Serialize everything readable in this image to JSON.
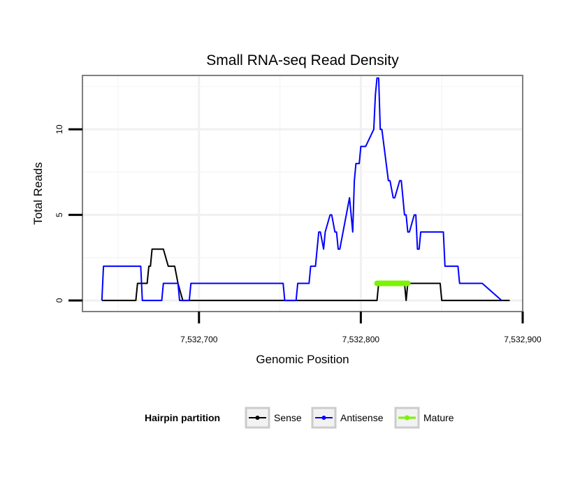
{
  "chart_data": {
    "type": "line",
    "title": "Small RNA-seq Read Density",
    "xlabel": "Genomic Position",
    "ylabel": "Total Reads",
    "xlim": [
      7532628,
      7532900
    ],
    "ylim": [
      -0.65,
      13.15
    ],
    "x_ticks": [
      {
        "value": 7532700,
        "label": "7,532,700"
      },
      {
        "value": 7532800,
        "label": "7,532,800"
      },
      {
        "value": 7532900,
        "label": "7,532,900"
      }
    ],
    "y_ticks": [
      {
        "value": 0,
        "label": "0"
      },
      {
        "value": 5,
        "label": "5"
      },
      {
        "value": 10,
        "label": "10"
      }
    ],
    "grid": true,
    "legend": {
      "position": "bottom",
      "title": "Hairpin partition",
      "entries": [
        "Sense",
        "Antisense",
        "Mature"
      ]
    },
    "series": [
      {
        "name": "Sense",
        "color": "#000000",
        "x": [
          7532640,
          7532661,
          7532662,
          7532668,
          7532669,
          7532670,
          7532671,
          7532672,
          7532678,
          7532681,
          7532685,
          7532687,
          7532690,
          7532810,
          7532811,
          7532827,
          7532828,
          7532829,
          7532830,
          7532849,
          7532850,
          7532892
        ],
        "y": [
          0,
          0,
          1,
          1,
          2,
          2,
          3,
          3,
          3,
          2,
          2,
          1,
          0,
          0,
          1,
          1,
          0,
          1,
          1,
          1,
          0,
          0
        ]
      },
      {
        "name": "Antisense",
        "color": "#0000ff",
        "x": [
          7532640,
          7532641,
          7532664,
          7532665,
          7532677,
          7532678,
          7532687,
          7532688,
          7532694,
          7532695,
          7532752,
          7532753,
          7532760,
          7532761,
          7532768,
          7532769,
          7532772,
          7532773,
          7532774,
          7532775,
          7532777,
          7532778,
          7532781,
          7532782,
          7532784,
          7532785,
          7532786,
          7532787,
          7532793,
          7532794,
          7532795,
          7532796,
          7532797,
          7532798,
          7532799,
          7532800,
          7532802,
          7532803,
          7532808,
          7532809,
          7532810,
          7532811,
          7532812,
          7532813,
          7532817,
          7532818,
          7532820,
          7532821,
          7532824,
          7532825,
          7532827,
          7532828,
          7532829,
          7532830,
          7532833,
          7532834,
          7532835,
          7532836,
          7532837,
          7532838,
          7532839,
          7532840,
          7532851,
          7532852,
          7532860,
          7532861,
          7532874,
          7532875,
          7532887
        ],
        "y": [
          0,
          2,
          2,
          0,
          0,
          1,
          1,
          0,
          0,
          1,
          1,
          0,
          0,
          1,
          1,
          2,
          2,
          3,
          4,
          4,
          3,
          4,
          5,
          5,
          4,
          4,
          3,
          3,
          6,
          5,
          4,
          7,
          8,
          8,
          8,
          9,
          9,
          9,
          10,
          12,
          13,
          13,
          10,
          10,
          7,
          7,
          6,
          6,
          7,
          7,
          5,
          5,
          4,
          4,
          5,
          5,
          3,
          3,
          4,
          4,
          4,
          4,
          4,
          2,
          2,
          1,
          1,
          1,
          0
        ]
      },
      {
        "name": "Mature",
        "color": "#7cf300",
        "x": [
          7532810,
          7532829
        ],
        "y": [
          1,
          1
        ]
      }
    ]
  }
}
